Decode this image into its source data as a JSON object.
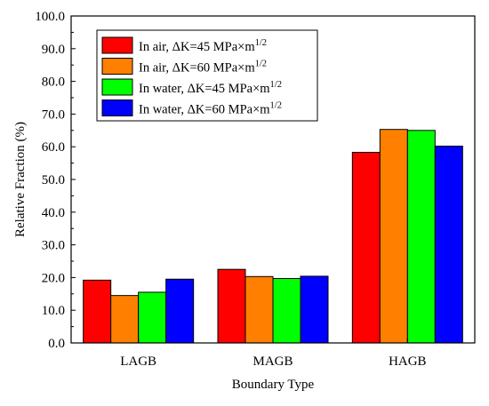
{
  "chart_data": {
    "type": "bar",
    "title": "",
    "xlabel": "Boundary Type",
    "ylabel": "Relative Fraction (%)",
    "ylim": [
      0,
      100
    ],
    "yticks": [
      "0.0",
      "10.0",
      "20.0",
      "30.0",
      "40.0",
      "50.0",
      "60.0",
      "70.0",
      "80.0",
      "90.0",
      "100.0"
    ],
    "categories": [
      "LAGB",
      "MAGB",
      "HAGB"
    ],
    "grid": false,
    "legend_position": "top-left",
    "series": [
      {
        "name": "In air, ΔK=45 MPa×m",
        "exponent": "1/2",
        "color": "#ff0000",
        "values": [
          19.2,
          22.5,
          58.3
        ]
      },
      {
        "name": "In air, ΔK=60 MPa×m",
        "exponent": "1/2",
        "color": "#ff8000",
        "values": [
          14.5,
          20.3,
          65.3
        ]
      },
      {
        "name": "In water, ΔK=45 MPa×m",
        "exponent": "1/2",
        "color": "#00ff00",
        "values": [
          15.5,
          19.7,
          65.0
        ]
      },
      {
        "name": "In water, ΔK=60 MPa×m",
        "exponent": "1/2",
        "color": "#0000ff",
        "values": [
          19.5,
          20.4,
          60.2
        ]
      }
    ]
  }
}
